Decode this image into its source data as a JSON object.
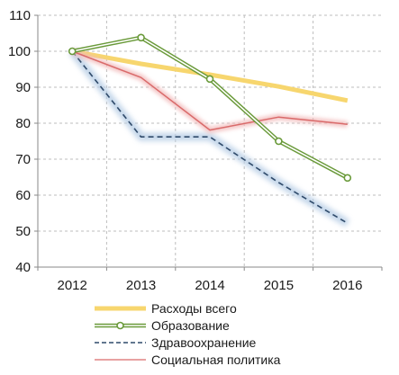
{
  "chart_data": {
    "type": "line",
    "x": [
      "2012",
      "2013",
      "2014",
      "2015",
      "2016"
    ],
    "ylim": [
      40,
      110
    ],
    "yticks": [
      40,
      50,
      60,
      70,
      80,
      90,
      100,
      110
    ],
    "grid": "dashed-vertical-and-horizontal",
    "legend_position": "bottom",
    "series": [
      {
        "name": "Расходы всего",
        "values": [
          100,
          96.5,
          93.5,
          90.2,
          86.3
        ],
        "color": "#f7d66e",
        "style": "thick-solid"
      },
      {
        "name": "Образование",
        "values": [
          100,
          103.8,
          92.3,
          75,
          64.8
        ],
        "color": "#6a9a3a",
        "style": "double-line-circle-markers"
      },
      {
        "name": "Здравоохранение",
        "values": [
          100,
          76.2,
          76.2,
          63.5,
          52.2
        ],
        "color": "#2f4a6a",
        "style": "dashed-glow"
      },
      {
        "name": "Социальная политика",
        "values": [
          100,
          92.7,
          78.1,
          81.7,
          79.7
        ],
        "color": "#d96a6a",
        "style": "thin-solid-glow"
      }
    ]
  }
}
